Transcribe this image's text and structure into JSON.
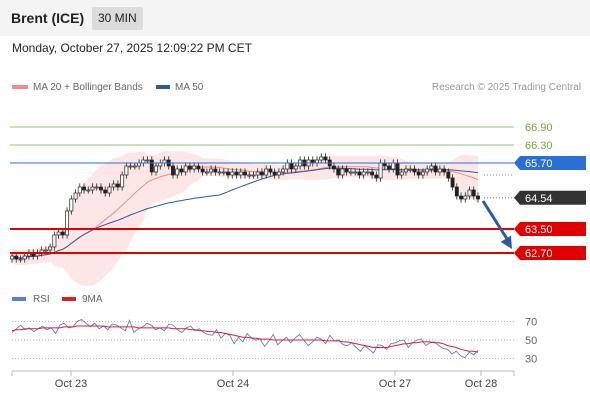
{
  "header": {
    "instrument": "Brent (ICE)",
    "timeframe": "30 MIN",
    "datetime": "Monday, October 27, 2025 12:09:22 PM CET"
  },
  "chart_data": [
    {
      "type": "candlestick",
      "legend": [
        {
          "name": "MA 20 + Bollinger Bands",
          "color": "#f08b8b"
        },
        {
          "name": "MA 50",
          "color": "#2e5a9e"
        }
      ],
      "credit": "Research © 2025 Trading Central",
      "x_ticks": [
        "Oct 23",
        "Oct 24",
        "Oct 27",
        "Oct 28"
      ],
      "y_range": [
        61.8,
        67.8
      ],
      "last_price": 64.54,
      "pivot": 65.7,
      "resistances": [
        66.3,
        66.9
      ],
      "supports": [
        63.5,
        62.7
      ],
      "level_labels": [
        {
          "text": "66.90",
          "value": 66.9,
          "kind": "resistance"
        },
        {
          "text": "66.30",
          "value": 66.3,
          "kind": "resistance"
        },
        {
          "text": "65.70",
          "value": 65.7,
          "kind": "pivot"
        },
        {
          "text": "64.54",
          "value": 64.54,
          "kind": "last"
        },
        {
          "text": "63.50",
          "value": 63.5,
          "kind": "support"
        },
        {
          "text": "62.70",
          "value": 62.7,
          "kind": "support"
        }
      ],
      "closes": [
        62.6,
        62.5,
        62.5,
        62.6,
        62.7,
        62.6,
        62.7,
        62.8,
        62.8,
        62.9,
        63.3,
        63.4,
        63.3,
        64.1,
        64.5,
        64.7,
        64.9,
        64.8,
        64.8,
        64.9,
        64.9,
        64.8,
        64.7,
        64.9,
        65.0,
        64.9,
        65.3,
        65.6,
        65.6,
        65.6,
        65.7,
        65.8,
        65.8,
        65.4,
        65.6,
        65.7,
        65.8,
        65.6,
        65.3,
        65.5,
        65.4,
        65.6,
        65.5,
        65.6,
        65.5,
        65.4,
        65.4,
        65.5,
        65.4,
        65.4,
        65.4,
        65.3,
        65.4,
        65.3,
        65.4,
        65.3,
        65.3,
        65.3,
        65.4,
        65.3,
        65.5,
        65.4,
        65.3,
        65.4,
        65.5,
        65.7,
        65.5,
        65.6,
        65.8,
        65.6,
        65.8,
        65.7,
        65.8,
        65.9,
        65.8,
        65.6,
        65.5,
        65.3,
        65.5,
        65.4,
        65.4,
        65.4,
        65.3,
        65.4,
        65.4,
        65.3,
        65.2,
        65.7,
        65.6,
        65.5,
        65.7,
        65.3,
        65.4,
        65.5,
        65.5,
        65.4,
        65.3,
        65.4,
        65.5,
        65.6,
        65.4,
        65.5,
        65.4,
        65.2,
        64.9,
        64.6,
        64.5,
        64.6,
        64.8,
        64.6,
        64.5
      ],
      "direction": {
        "from": 64.5,
        "to": 62.8
      }
    },
    {
      "type": "line",
      "legend": [
        {
          "name": "RSI",
          "color": "#5b7fd6"
        },
        {
          "name": "9MA",
          "color": "#e02020"
        }
      ],
      "y_ticks": [
        70,
        50,
        30
      ],
      "y_range": [
        20,
        80
      ],
      "rsi": [
        58,
        62,
        66,
        61,
        63,
        59,
        62,
        65,
        61,
        63,
        57,
        66,
        68,
        63,
        64,
        70,
        72,
        68,
        64,
        68,
        62,
        65,
        61,
        67,
        66,
        63,
        60,
        71,
        58,
        62,
        64,
        68,
        66,
        61,
        63,
        60,
        67,
        66,
        61,
        58,
        63,
        65,
        60,
        62,
        58,
        56,
        55,
        61,
        52,
        57,
        55,
        46,
        53,
        48,
        57,
        52,
        50,
        51,
        43,
        49,
        56,
        45,
        49,
        53,
        47,
        52,
        56,
        50,
        44,
        48,
        53,
        51,
        46,
        55,
        49,
        50,
        45,
        44,
        47,
        42,
        38,
        44,
        40,
        36,
        45,
        44,
        40,
        46,
        47,
        49,
        50,
        42,
        47,
        50,
        51,
        44,
        47,
        48,
        44,
        41,
        40,
        35,
        38,
        33,
        31,
        37,
        34,
        39
      ],
      "ma9": [
        60,
        61,
        61,
        62,
        62,
        62,
        62,
        63,
        63,
        63,
        63,
        63,
        64,
        64,
        64,
        65,
        65,
        65,
        65,
        65,
        65,
        65,
        64,
        64,
        64,
        64,
        64,
        64,
        64,
        63,
        63,
        63,
        63,
        63,
        63,
        63,
        63,
        62,
        62,
        62,
        62,
        61,
        61,
        60,
        60,
        59,
        59,
        58,
        58,
        57,
        56,
        55,
        54,
        53,
        53,
        52,
        52,
        51,
        51,
        51,
        50,
        50,
        50,
        50,
        50,
        50,
        50,
        50,
        50,
        50,
        50,
        50,
        49,
        49,
        49,
        49,
        48,
        48,
        47,
        46,
        45,
        44,
        43,
        42,
        42,
        42,
        42,
        43,
        44,
        45,
        46,
        46,
        47,
        47,
        48,
        48,
        48,
        47,
        47,
        46,
        44,
        43,
        42,
        40,
        39,
        38,
        38,
        37
      ]
    }
  ]
}
